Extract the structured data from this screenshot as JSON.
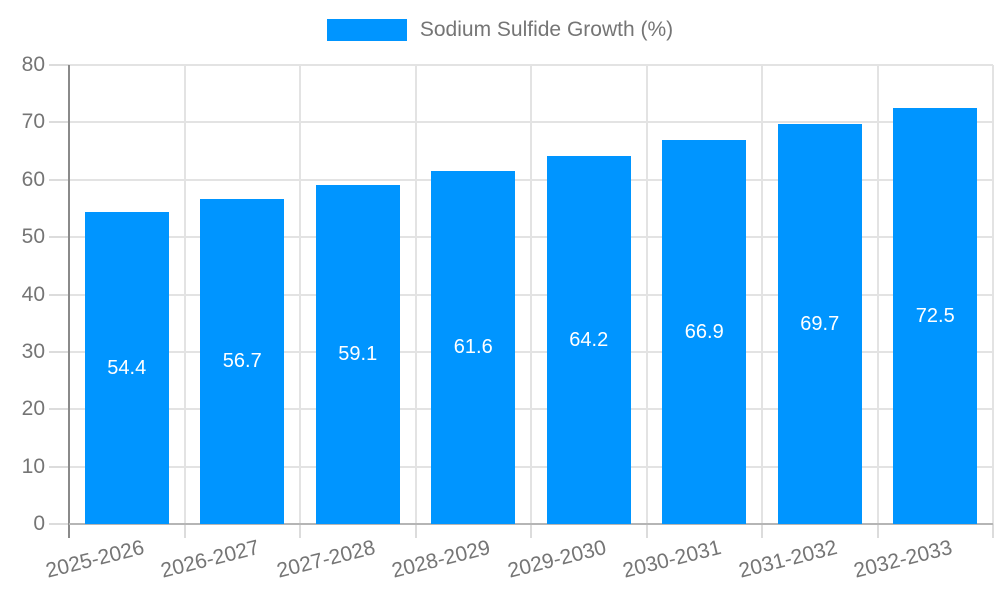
{
  "legend": {
    "label": "Sodium Sulfide Growth (%)"
  },
  "colors": {
    "bar": "#0095ff",
    "axis_text": "#757575",
    "value_label_text": "#ffffff",
    "grid": "#e3e3e3",
    "y_axis_line": "#8a8a8a",
    "x_axis_line": "#b5b5b5",
    "tick": "#dcdcdc"
  },
  "chart_data": {
    "type": "bar",
    "title": "Sodium Sulfide Growth (%)",
    "series_name": "Sodium Sulfide Growth (%)",
    "categories": [
      "2025-2026",
      "2026-2027",
      "2027-2028",
      "2028-2029",
      "2029-2030",
      "2030-2031",
      "2031-2032",
      "2032-2033"
    ],
    "values": [
      54.4,
      56.7,
      59.1,
      61.6,
      64.2,
      66.9,
      69.7,
      72.5
    ],
    "value_labels": [
      "54.4",
      "56.7",
      "59.1",
      "61.6",
      "64.2",
      "66.9",
      "69.7",
      "72.5"
    ],
    "xlabel": "",
    "ylabel": "",
    "ylim": [
      0,
      80
    ],
    "yticks": [
      0,
      10,
      20,
      30,
      40,
      50,
      60,
      70,
      80
    ],
    "grid": true,
    "legend_position": "top",
    "bar_label_position": "inside-center",
    "x_label_rotation_deg": -14
  }
}
